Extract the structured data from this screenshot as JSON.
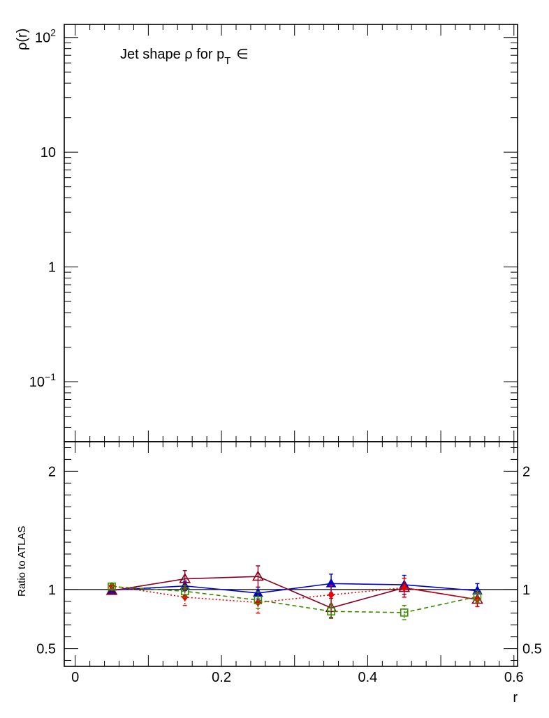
{
  "chart_data": [
    {
      "panel": "upper",
      "type": "line",
      "ylabel": "ρ(r)",
      "title_main": "Jet shape ρ for p",
      "title_sub": "T",
      "title_tail": "∈",
      "yscale": "log",
      "ylim": [
        0.03,
        130
      ],
      "xlim": [
        -0.015,
        0.605
      ],
      "yticks": [
        {
          "value": 100,
          "base": "10",
          "exp": "2"
        },
        {
          "value": 10,
          "base": "10",
          "exp": ""
        },
        {
          "value": 1,
          "base": "1",
          "exp": ""
        },
        {
          "value": 0.1,
          "base": "10",
          "exp": "−1"
        }
      ],
      "series": []
    },
    {
      "panel": "lower",
      "type": "line",
      "xlabel": "r",
      "ylabel": "Ratio to ATLAS",
      "xlim": [
        -0.015,
        0.605
      ],
      "ylim": [
        0.35,
        2.25
      ],
      "xticks": [
        {
          "value": 0,
          "label": "0"
        },
        {
          "value": 0.2,
          "label": "0.2"
        },
        {
          "value": 0.4,
          "label": "0.4"
        },
        {
          "value": 0.6,
          "label": "0.6"
        }
      ],
      "yticks": [
        {
          "value": 2,
          "label": "2"
        },
        {
          "value": 1,
          "label": "1"
        },
        {
          "value": 0.5,
          "label": "0.5"
        }
      ],
      "reference_line": 1,
      "series": [
        {
          "color": "#0000cc",
          "dash": "",
          "marker": "triangle-filled",
          "x": [
            0.05,
            0.15,
            0.25,
            0.35,
            0.45,
            0.55
          ],
          "y": [
            0.995,
            1.03,
            0.97,
            1.05,
            1.04,
            0.99
          ],
          "err": [
            0.02,
            0.04,
            0.05,
            0.08,
            0.08,
            0.06
          ]
        },
        {
          "color": "#8b0020",
          "dash": "",
          "marker": "triangle-open",
          "x": [
            0.05,
            0.15,
            0.25,
            0.35,
            0.45,
            0.55
          ],
          "y": [
            0.99,
            1.09,
            1.11,
            0.845,
            1.015,
            0.915
          ],
          "err": [
            0.02,
            0.07,
            0.09,
            0.08,
            0.08,
            0.06
          ]
        },
        {
          "color": "#ee0000",
          "dash": "2,3",
          "marker": "diamond-filled",
          "x": [
            0.05,
            0.15,
            0.25,
            0.35,
            0.45,
            0.55
          ],
          "y": [
            1.03,
            0.935,
            0.89,
            0.955,
            1.015,
            0.915
          ],
          "err": [
            0.02,
            0.07,
            0.09,
            0.08,
            0.08,
            0.06
          ]
        },
        {
          "color": "#3a8c00",
          "dash": "6,4",
          "marker": "square-open",
          "x": [
            0.05,
            0.15,
            0.25,
            0.35,
            0.45,
            0.55
          ],
          "y": [
            1.025,
            0.985,
            0.91,
            0.815,
            0.805,
            0.94
          ],
          "err": [
            0.02,
            0.05,
            0.07,
            0.06,
            0.06,
            0.05
          ]
        }
      ]
    }
  ]
}
